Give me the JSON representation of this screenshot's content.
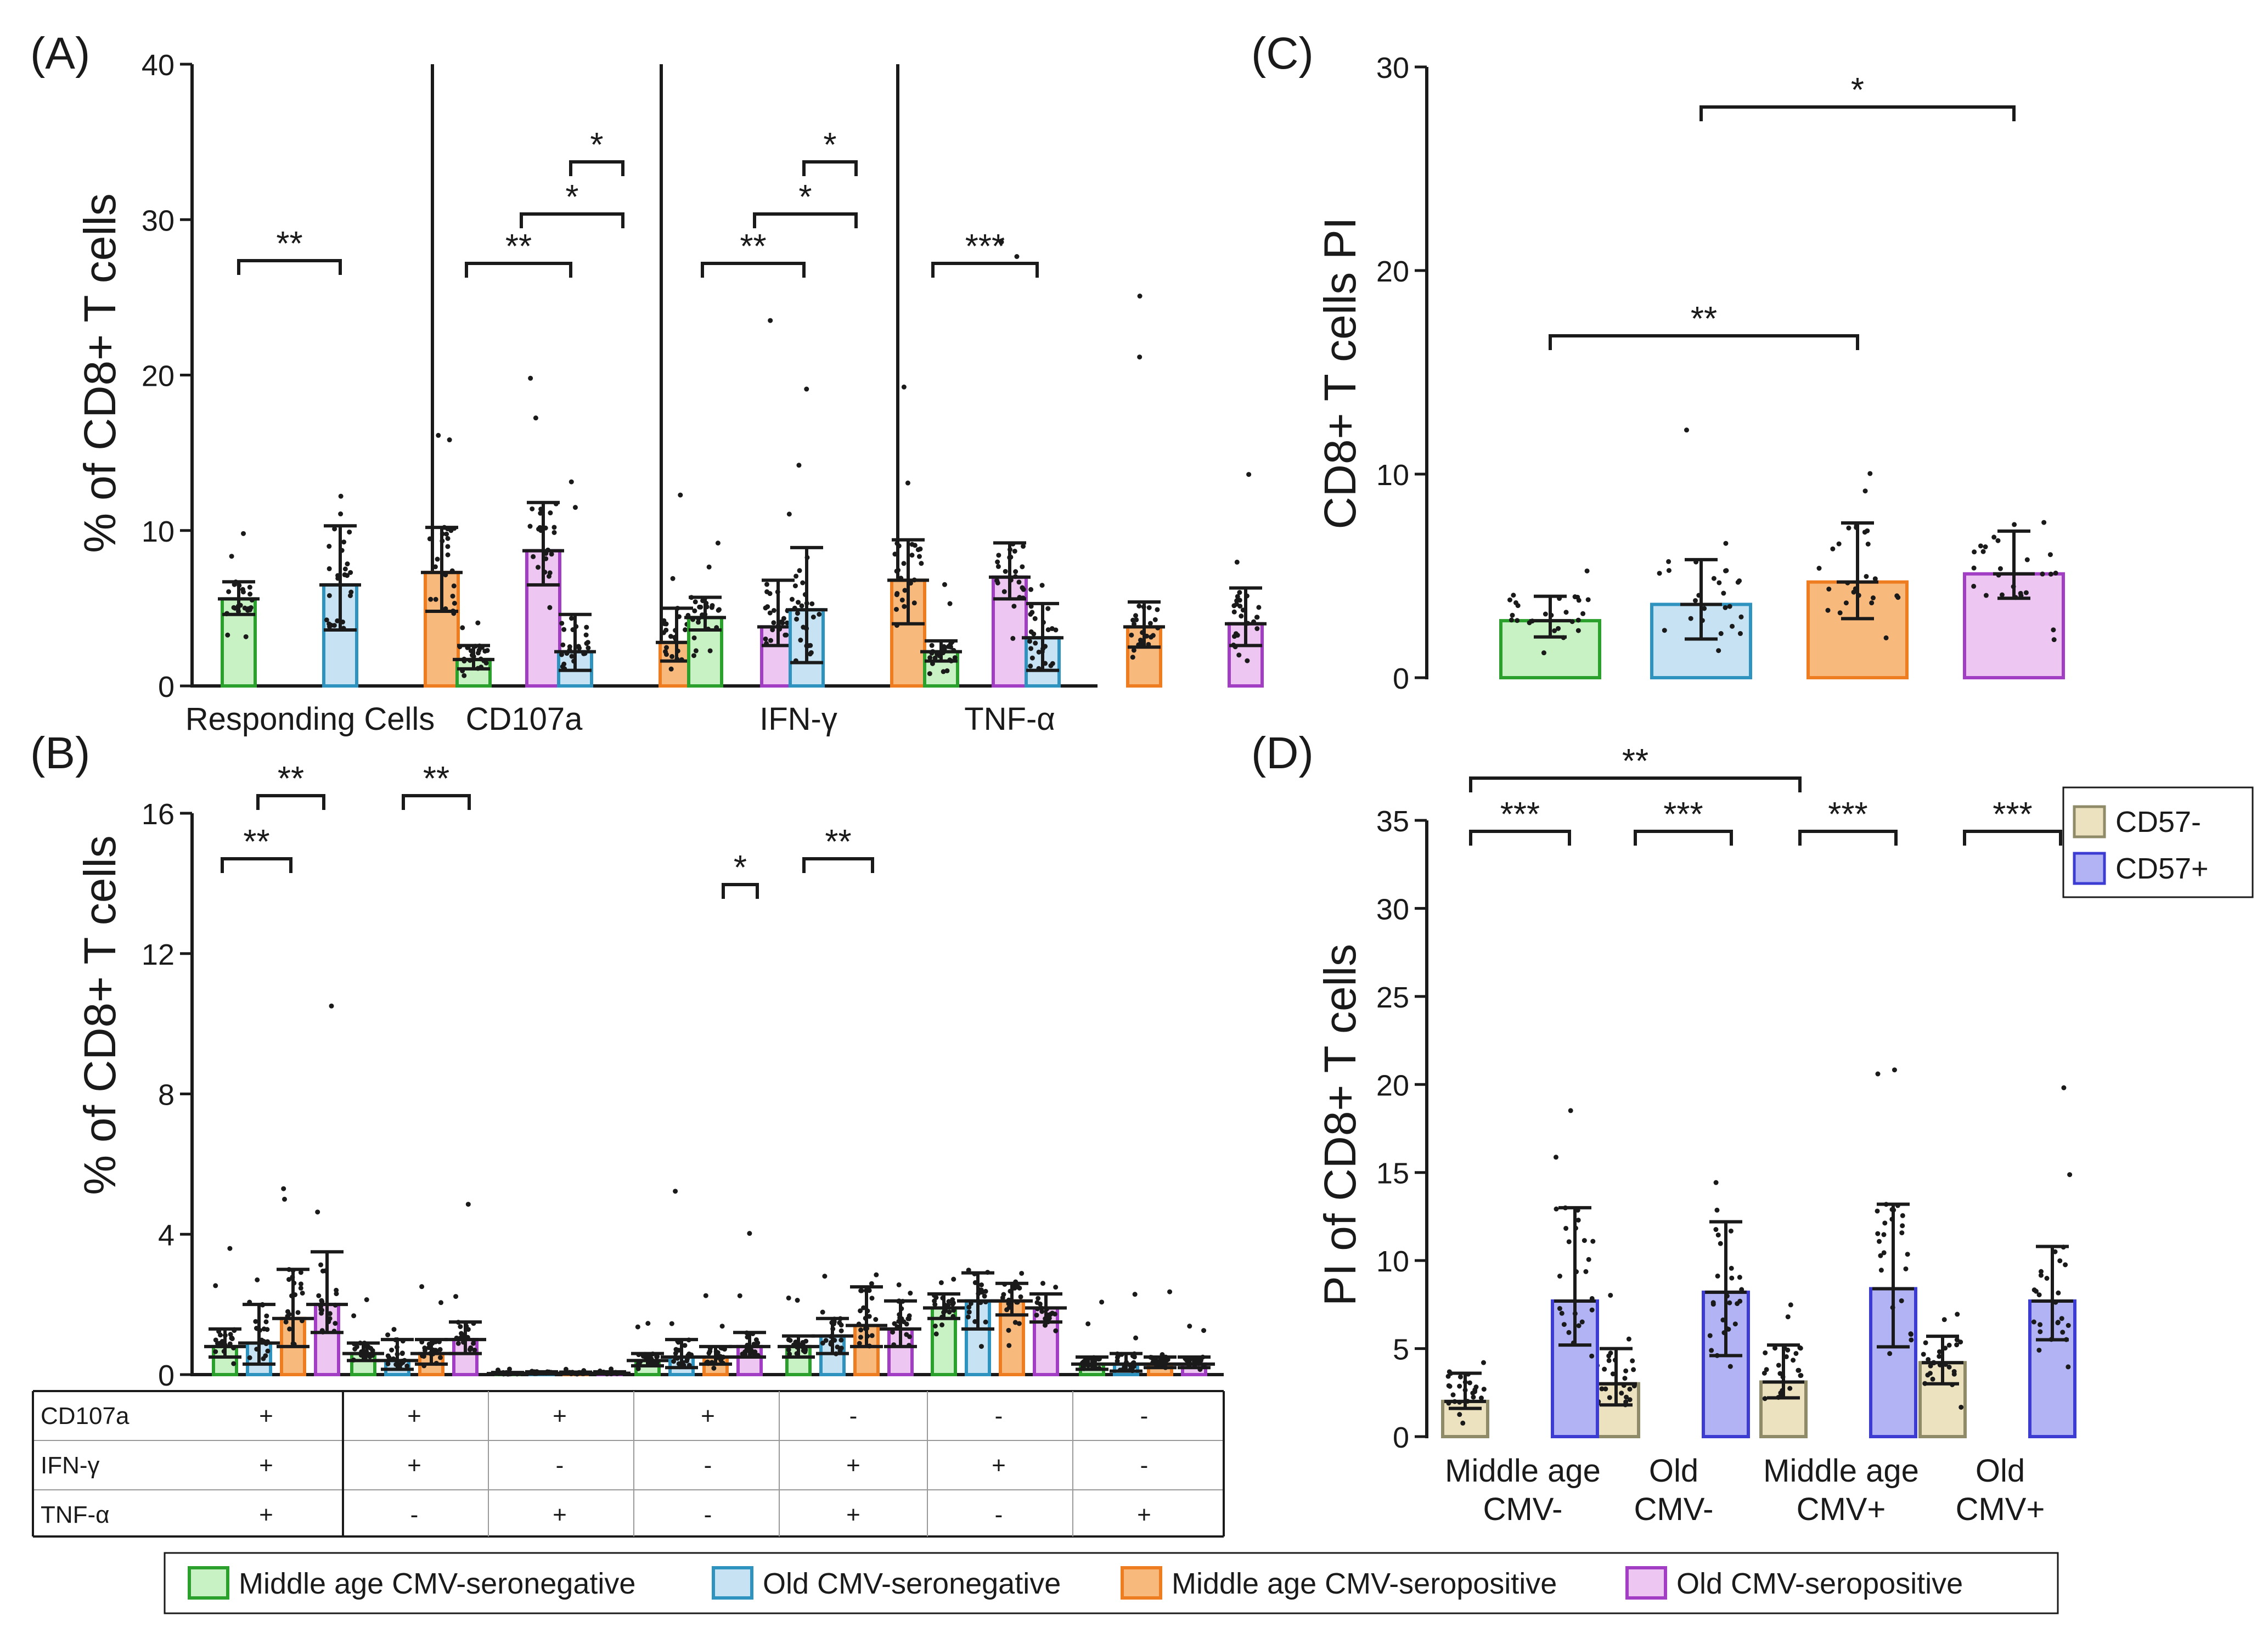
{
  "colors": {
    "groups": [
      {
        "fill": "#c9f2c4",
        "stroke": "#2ca02c"
      },
      {
        "fill": "#c6e2f3",
        "stroke": "#2f93bf"
      },
      {
        "fill": "#f8b97d",
        "stroke": "#ee7d22"
      },
      {
        "fill": "#edc7f2",
        "stroke": "#a23ec3"
      }
    ],
    "cd57": [
      {
        "fill": "#ece2c0",
        "stroke": "#8f8a68"
      },
      {
        "fill": "#b1b3f5",
        "stroke": "#3c3cd3"
      }
    ]
  },
  "legend": {
    "groups": [
      "Middle age CMV-seronegative",
      "Old CMV-seronegative",
      "Middle age  CMV-seropositive",
      "Old CMV-seropositive"
    ],
    "cd57": [
      "CD57-",
      "CD57+"
    ]
  },
  "table": {
    "rows": [
      {
        "label": "CD107a",
        "cells": [
          "+",
          "+",
          "+",
          "+",
          "-",
          "-",
          "-"
        ]
      },
      {
        "label": "IFN-γ",
        "cells": [
          "+",
          "+",
          "-",
          "-",
          "+",
          "+",
          "-"
        ]
      },
      {
        "label": "TNF-α",
        "cells": [
          "+",
          "-",
          "+",
          "-",
          "+",
          "-",
          "+"
        ]
      }
    ]
  },
  "chart_data": [
    {
      "panel": "(A)",
      "type": "bar",
      "ylabel": "% of CD8+ T cells",
      "ylim": [
        0,
        40
      ],
      "yticks": [
        "0",
        "10",
        "20",
        "30",
        "40"
      ],
      "categories": [
        "Responding Cells",
        "CD107a",
        "IFN-γ",
        "TNF-α"
      ],
      "series": [
        {
          "name": "Middle age CMV-seronegative",
          "values": [
            5.6,
            1.7,
            4.4,
            2.2
          ],
          "err_low": [
            4.6,
            1.1,
            3.6,
            1.6
          ],
          "err_high": [
            6.7,
            2.6,
            5.7,
            2.9
          ]
        },
        {
          "name": "Old CMV-seronegative",
          "values": [
            6.5,
            2.2,
            4.9,
            3.1
          ],
          "err_low": [
            3.6,
            1.0,
            1.5,
            1.0
          ],
          "err_high": [
            10.3,
            4.6,
            8.9,
            5.3
          ]
        },
        {
          "name": "Middle age CMV-seropositive",
          "values": [
            7.3,
            2.8,
            6.8,
            3.8
          ],
          "err_low": [
            4.8,
            1.6,
            4.0,
            2.5
          ],
          "err_high": [
            10.2,
            5.0,
            9.4,
            5.4
          ]
        },
        {
          "name": "Old CMV-seropositive",
          "values": [
            8.7,
            3.8,
            7.0,
            4.0
          ],
          "err_low": [
            6.5,
            2.6,
            5.6,
            2.6
          ],
          "err_high": [
            11.8,
            6.8,
            9.2,
            6.3
          ]
        }
      ],
      "annotations": [
        "**",
        "**",
        "*",
        "*",
        "**",
        "*",
        "*",
        "***"
      ]
    },
    {
      "panel": "(B)",
      "type": "bar",
      "ylabel": "% of CD8+ T cells",
      "ylim": [
        0,
        16
      ],
      "yticks": [
        "0",
        "4",
        "8",
        "12",
        "16"
      ],
      "categories": [
        "CD107a+ IFN-γ+ TNF-α+",
        "CD107a+ IFN-γ+ TNF-α-",
        "CD107a+ IFN-γ- TNF-α+",
        "CD107a+ IFN-γ- TNF-α-",
        "CD107a- IFN-γ+ TNF-α+",
        "CD107a- IFN-γ+ TNF-α-",
        "CD107a- IFN-γ- TNF-α+"
      ],
      "series": [
        {
          "name": "Middle age CMV-seronegative",
          "values": [
            0.8,
            0.6,
            0.03,
            0.4,
            0.8,
            1.9,
            0.3
          ],
          "err_low": [
            0.5,
            0.4,
            0.01,
            0.25,
            0.5,
            1.6,
            0.15
          ],
          "err_high": [
            1.3,
            0.9,
            0.06,
            0.6,
            1.1,
            2.3,
            0.5
          ]
        },
        {
          "name": "Old CMV-seronegative",
          "values": [
            0.9,
            0.4,
            0.04,
            0.5,
            1.1,
            2.1,
            0.3
          ],
          "err_low": [
            0.3,
            0.15,
            0.02,
            0.2,
            0.6,
            1.3,
            0.1
          ],
          "err_high": [
            2.0,
            1.0,
            0.08,
            1.0,
            1.6,
            2.9,
            0.6
          ]
        },
        {
          "name": "Middle age CMV-seropositive",
          "values": [
            1.6,
            0.6,
            0.04,
            0.5,
            1.4,
            2.1,
            0.3
          ],
          "err_low": [
            0.8,
            0.3,
            0.02,
            0.3,
            0.8,
            1.7,
            0.2
          ],
          "err_high": [
            3.0,
            1.0,
            0.07,
            0.8,
            2.5,
            2.6,
            0.5
          ]
        },
        {
          "name": "Old CMV-seropositive",
          "values": [
            2.0,
            1.0,
            0.04,
            0.8,
            1.3,
            1.9,
            0.3
          ],
          "err_low": [
            1.2,
            0.6,
            0.02,
            0.5,
            0.8,
            1.5,
            0.2
          ],
          "err_high": [
            3.5,
            1.5,
            0.08,
            1.2,
            2.1,
            2.3,
            0.5
          ]
        }
      ],
      "annotations": [
        "**",
        "**",
        "**",
        "*",
        "**"
      ]
    },
    {
      "panel": "(C)",
      "type": "bar",
      "ylabel": "CD8+ T cells PI",
      "ylim": [
        0,
        30
      ],
      "yticks": [
        "0",
        "10",
        "20",
        "30"
      ],
      "categories": [
        "Middle age CMV-seronegative",
        "Old CMV-seronegative",
        "Middle age CMV-seropositive",
        "Old CMV-seropositive"
      ],
      "values": [
        2.8,
        3.6,
        4.7,
        5.1
      ],
      "err_low": [
        2.0,
        1.9,
        2.9,
        3.9
      ],
      "err_high": [
        4.0,
        5.8,
        7.6,
        7.2
      ],
      "annotations": [
        "*",
        "**"
      ]
    },
    {
      "panel": "(D)",
      "type": "bar",
      "ylabel": "PI of CD8+ T cells",
      "ylim": [
        0,
        35
      ],
      "yticks": [
        "0",
        "5",
        "10",
        "15",
        "20",
        "25",
        "30",
        "35"
      ],
      "categories": [
        "Middle age CMV-",
        "Old CMV-",
        "Middle age CMV+",
        "Old CMV+"
      ],
      "series": [
        {
          "name": "CD57-",
          "values": [
            2.0,
            3.0,
            3.1,
            4.2
          ],
          "err_low": [
            1.6,
            1.8,
            2.2,
            3.0
          ],
          "err_high": [
            3.6,
            5.0,
            5.2,
            5.7
          ]
        },
        {
          "name": "CD57+",
          "values": [
            7.7,
            8.2,
            8.4,
            7.7
          ],
          "err_low": [
            5.2,
            4.6,
            5.1,
            5.5
          ],
          "err_high": [
            13.0,
            12.2,
            13.2,
            10.8
          ]
        }
      ],
      "annotations": [
        "**",
        "***",
        "***",
        "***",
        "***"
      ]
    }
  ]
}
